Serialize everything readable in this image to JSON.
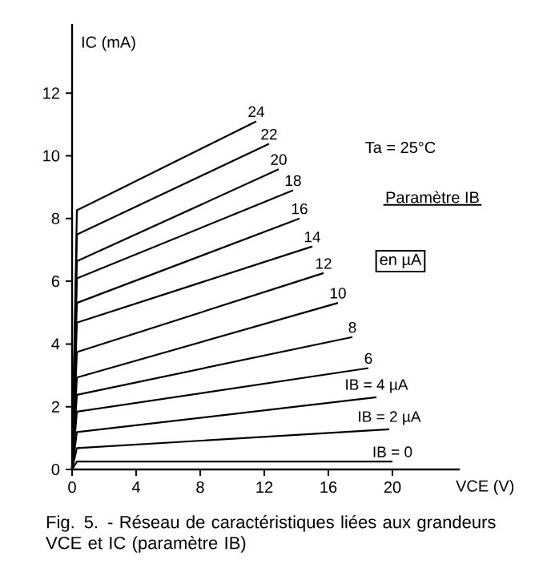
{
  "chart_data": {
    "type": "line",
    "xlabel": "VCE (V)",
    "ylabel": "IC (mA)",
    "xlim": [
      0,
      24.2
    ],
    "ylim": [
      0,
      14.2
    ],
    "xticks": [
      0,
      4,
      8,
      12,
      16,
      20
    ],
    "yticks": [
      0,
      2,
      4,
      6,
      8,
      10,
      12
    ],
    "grid": false,
    "marker": "none",
    "line_style": "solid",
    "series": [
      {
        "name": "IB = 0",
        "color": "#000000",
        "x": [
          0,
          0.3,
          20
        ],
        "values": [
          0,
          0.25,
          0.25
        ]
      },
      {
        "name": "IB = 2 µA",
        "color": "#000000",
        "x": [
          0,
          0.3,
          19.8
        ],
        "values": [
          0,
          0.68,
          1.28
        ]
      },
      {
        "name": "IB = 4 µA",
        "color": "#000000",
        "x": [
          0,
          0.3,
          19.0
        ],
        "values": [
          0,
          1.19,
          2.3
        ]
      },
      {
        "name": "6",
        "color": "#000000",
        "x": [
          0,
          0.3,
          18.5
        ],
        "values": [
          0,
          1.84,
          3.23
        ]
      },
      {
        "name": "8",
        "color": "#000000",
        "x": [
          0,
          0.3,
          17.5
        ],
        "values": [
          0,
          2.38,
          4.22
        ]
      },
      {
        "name": "10",
        "color": "#000000",
        "x": [
          0,
          0.3,
          16.6
        ],
        "values": [
          0,
          2.93,
          5.31
        ]
      },
      {
        "name": "12",
        "color": "#000000",
        "x": [
          0,
          0.3,
          15.7
        ],
        "values": [
          0,
          3.74,
          6.26
        ]
      },
      {
        "name": "14",
        "color": "#000000",
        "x": [
          0,
          0.3,
          15.0
        ],
        "values": [
          0,
          4.68,
          7.11
        ]
      },
      {
        "name": "16",
        "color": "#000000",
        "x": [
          0,
          0.3,
          14.2
        ],
        "values": [
          0,
          5.31,
          8.0
        ]
      },
      {
        "name": "18",
        "color": "#000000",
        "x": [
          0,
          0.3,
          13.8
        ],
        "values": [
          0,
          6.09,
          8.9
        ]
      },
      {
        "name": "20",
        "color": "#000000",
        "x": [
          0,
          0.3,
          12.9
        ],
        "values": [
          0,
          6.64,
          9.57
        ]
      },
      {
        "name": "22",
        "color": "#000000",
        "x": [
          0,
          0.3,
          12.3
        ],
        "values": [
          0,
          7.49,
          10.38
        ]
      },
      {
        "name": "24",
        "color": "#000000",
        "x": [
          0,
          0.3,
          11.5
        ],
        "values": [
          0,
          8.26,
          11.1
        ]
      }
    ],
    "annotations": [
      "Ta = 25°C",
      "Paramètre IB",
      "en µA",
      "Fig. 5. - Réseau de caractéristiques liées aux grandeurs VCE et IC (paramètre IB)"
    ]
  }
}
